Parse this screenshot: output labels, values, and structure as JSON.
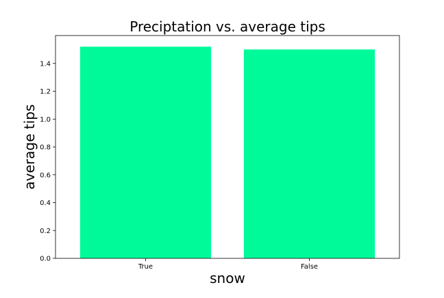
{
  "chart_data": {
    "type": "bar",
    "title": "Preciptation vs. average tips",
    "xlabel": "snow",
    "ylabel": "average tips",
    "categories": [
      "True",
      "False"
    ],
    "values": [
      1.52,
      1.5
    ],
    "ylim": [
      0,
      1.6
    ],
    "yticks": [
      "0.0",
      "0.2",
      "0.4",
      "0.6",
      "0.8",
      "1.0",
      "1.2",
      "1.4"
    ],
    "grid": false,
    "legend": "none",
    "bar_color": "#00fa9a"
  }
}
